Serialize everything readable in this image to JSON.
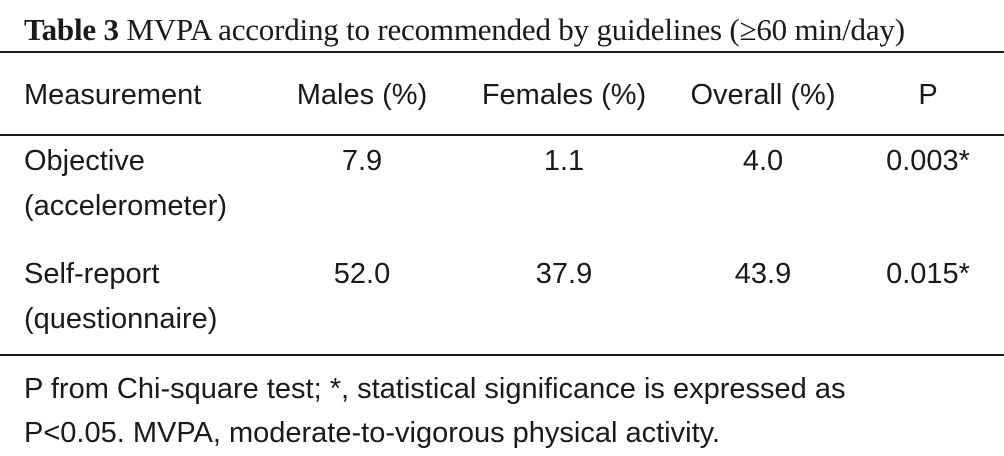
{
  "caption": {
    "label": "Table 3",
    "text": "MVPA according to recommended by guidelines (≥60 min/day)"
  },
  "table": {
    "headers": [
      "Measurement",
      "Males (%)",
      "Females (%)",
      "Overall (%)",
      "P"
    ],
    "rows": [
      {
        "measurement_line1": "Objective",
        "measurement_line2": "(accelerometer)",
        "males": "7.9",
        "females": "1.1",
        "overall": "4.0",
        "p": "0.003*"
      },
      {
        "measurement_line1": "Self-report",
        "measurement_line2": "(questionnaire)",
        "males": "52.0",
        "females": "37.9",
        "overall": "43.9",
        "p": "0.015*"
      }
    ]
  },
  "footnote": {
    "line1": "P from Chi-square test; *, statistical significance is expressed as",
    "line2": "P<0.05. MVPA, moderate-to-vigorous physical activity."
  }
}
